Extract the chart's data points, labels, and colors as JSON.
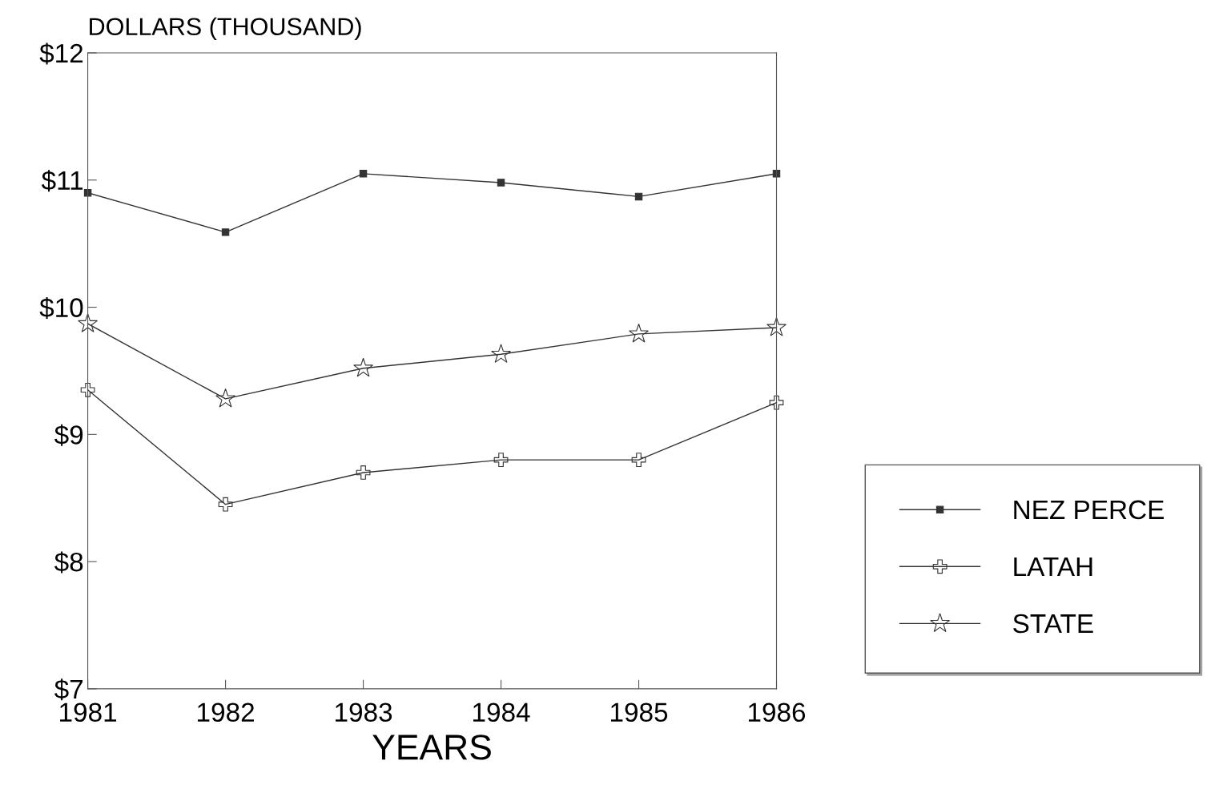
{
  "chart_data": {
    "type": "line",
    "ylabel": "DOLLARS (THOUSAND)",
    "xlabel": "YEARS",
    "x": [
      1981,
      1982,
      1983,
      1984,
      1985,
      1986
    ],
    "series": [
      {
        "name": "NEZ PERCE",
        "color": "#333333",
        "marker": "square",
        "values": [
          10.9,
          10.59,
          11.05,
          10.98,
          10.87,
          11.05
        ]
      },
      {
        "name": "LATAH",
        "color": "#333333",
        "marker": "cross",
        "values": [
          9.35,
          8.45,
          8.7,
          8.8,
          8.8,
          9.25
        ]
      },
      {
        "name": "STATE",
        "color": "#333333",
        "marker": "star",
        "values": [
          9.87,
          9.28,
          9.52,
          9.63,
          9.79,
          9.84
        ]
      }
    ],
    "xlim": [
      1981,
      1986
    ],
    "xticks": [
      1981,
      1982,
      1983,
      1984,
      1985,
      1986
    ],
    "ylim": [
      7,
      12
    ],
    "yticks": [
      {
        "value": 7,
        "label": "$7"
      },
      {
        "value": 8,
        "label": "$8"
      },
      {
        "value": 9,
        "label": "$9"
      },
      {
        "value": 10,
        "label": "$10"
      },
      {
        "value": 11,
        "label": "$11"
      },
      {
        "value": 12,
        "label": "$12"
      }
    ],
    "grid": false,
    "legend": "bottom right",
    "line_style": "solid"
  }
}
